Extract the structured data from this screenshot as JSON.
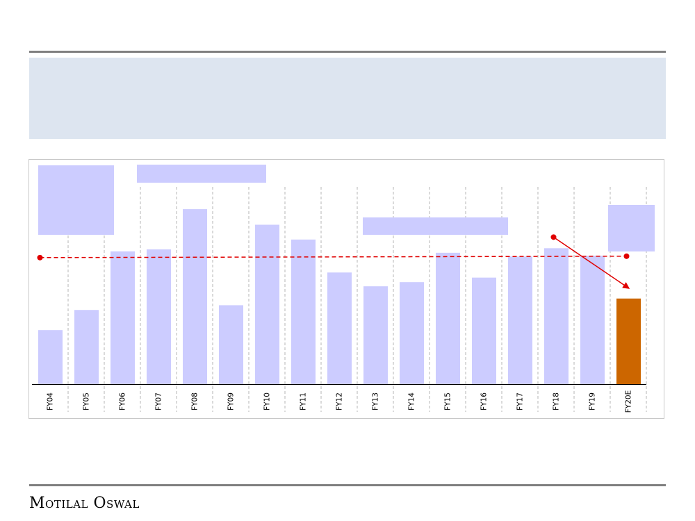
{
  "brand": {
    "name": "Motilal Oswal"
  },
  "colors": {
    "bar": "#ccccff",
    "bar_highlight": "#cc6600",
    "average_line": "#e00000",
    "header_band": "#dde5f0",
    "rule": "#7f7f7f"
  },
  "chart_data": {
    "type": "bar",
    "title": "",
    "xlabel": "",
    "ylabel": "",
    "categories": [
      "FY04",
      "FY05",
      "FY06",
      "FY07",
      "FY08",
      "FY09",
      "FY10",
      "FY11",
      "FY12",
      "FY13",
      "FY14",
      "FY15",
      "FY16",
      "FY17",
      "FY18",
      "FY19",
      "FY20E"
    ],
    "values": [
      27.4,
      37.6,
      67.3,
      68.3,
      88.7,
      40.0,
      80.8,
      73.3,
      56.6,
      49.6,
      51.7,
      66.6,
      54.0,
      64.7,
      68.9,
      65.1,
      43.4
    ],
    "highlight_category": "FY20E",
    "ylim": [
      0,
      100
    ],
    "grid": "vertical dashed",
    "legend": "none",
    "average_line": {
      "value": 64.5,
      "from": "FY04",
      "to": "FY20E",
      "style": "dashed"
    },
    "trend_arrow": {
      "from": "FY18",
      "to": "FY20E",
      "direction": "down"
    }
  }
}
